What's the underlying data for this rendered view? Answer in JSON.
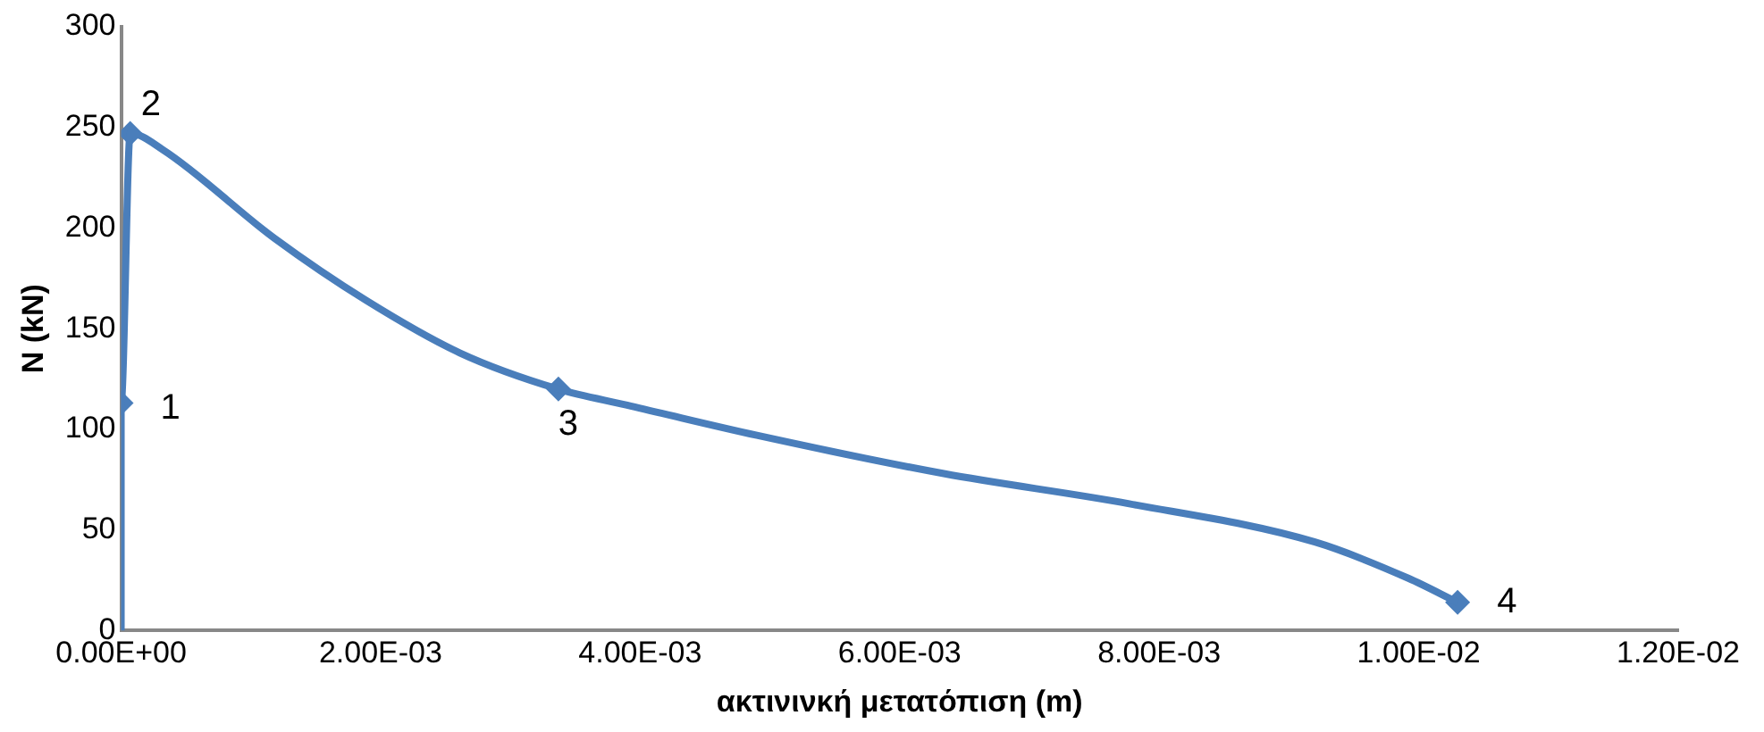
{
  "chart_data": {
    "type": "line",
    "xlabel": "ακτινινκή μετατόπιση (m)",
    "ylabel": "N (kN)",
    "xlim": [
      0,
      0.012
    ],
    "xticks": [
      {
        "value": 0,
        "label": "0.00E+00"
      },
      {
        "value": 0.002,
        "label": "2.00E-03"
      },
      {
        "value": 0.004,
        "label": "4.00E-03"
      },
      {
        "value": 0.006,
        "label": "6.00E-03"
      },
      {
        "value": 0.008,
        "label": "8.00E-03"
      },
      {
        "value": 0.01,
        "label": "1.00E-02"
      },
      {
        "value": 0.012,
        "label": "1.20E-02"
      }
    ],
    "ylim": [
      0,
      300
    ],
    "yticks": [
      0,
      50,
      100,
      150,
      200,
      250,
      300
    ],
    "grid": false,
    "legend": false,
    "series": [
      {
        "marker": "none",
        "color": "#4a7ebb",
        "x": [
          0,
          0,
          7e-05,
          0.00032,
          0.00118,
          0.00189,
          0.00261,
          0.00337,
          0.0039,
          0.0049,
          0.00634,
          0.00777,
          0.0092,
          0.00992,
          0.0103
        ],
        "values": [
          0,
          113,
          247,
          239,
          195,
          164,
          138,
          120,
          112,
          97,
          78,
          63,
          44,
          26,
          14
        ]
      },
      {
        "type": "scatter",
        "marker": "diamond",
        "color": "#4a7ebb",
        "x": [
          0,
          7e-05,
          0.00337,
          0.0103
        ],
        "values": [
          113,
          247,
          120,
          14
        ]
      }
    ],
    "annotations": [
      {
        "text": "1",
        "x": 0,
        "y": 113
      },
      {
        "text": "2",
        "x": 7e-05,
        "y": 247
      },
      {
        "text": "3",
        "x": 0.00337,
        "y": 120
      },
      {
        "text": "4",
        "x": 0.0103,
        "y": 14
      }
    ]
  }
}
